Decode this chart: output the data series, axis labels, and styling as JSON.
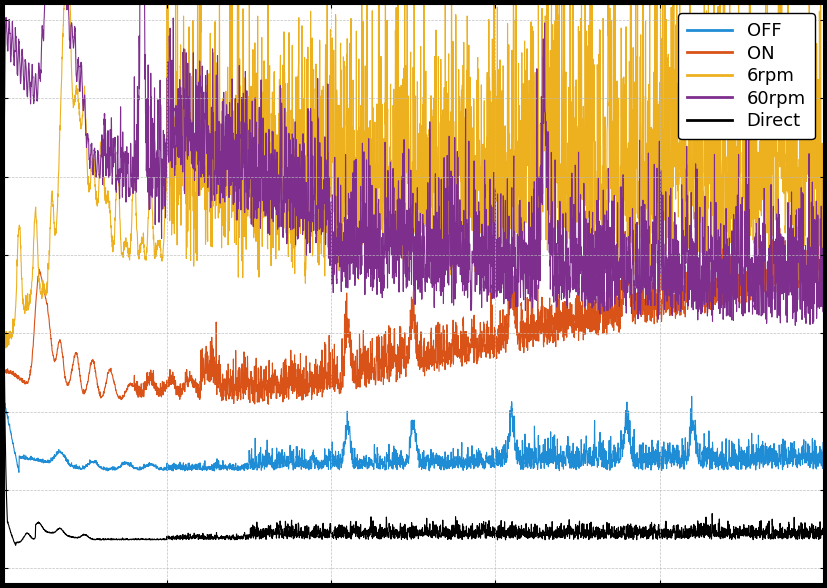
{
  "legend_labels": [
    "OFF",
    "ON",
    "6rpm",
    "60rpm",
    "Direct"
  ],
  "colors": [
    "#1f8dd6",
    "#d95319",
    "#edb120",
    "#7e2f8e",
    "#000000"
  ],
  "background_color": "#ffffff",
  "outer_color": "#000000",
  "grid_color": "#bbbbbb",
  "grid_style": "--",
  "xlim": [
    0,
    500
  ],
  "legend_fontsize": 13,
  "legend_loc": "upper right",
  "linewidth": 0.8
}
